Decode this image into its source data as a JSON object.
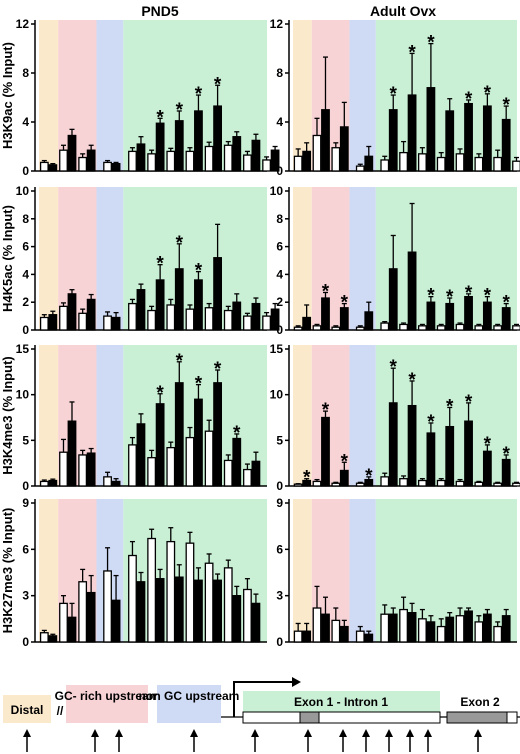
{
  "column_titles": [
    "PND5",
    "Adult Ovx"
  ],
  "region_colors": {
    "distal": "#fbe9cc",
    "gc_rich": "#f8d3d6",
    "non_gc": "#cfdaf4",
    "exon_intron": "#c9efd4"
  },
  "bar_colors": {
    "open": "#ffffff",
    "filled": "#000000"
  },
  "chart_data": [
    {
      "type": "bar",
      "panel": "PND5",
      "ylabel": "H3K9ac (% Input)",
      "ylim": [
        0,
        12
      ],
      "yticks": [
        0,
        4,
        8,
        12
      ],
      "series": [
        {
          "values": [
            0.7,
            1.7,
            1.1,
            0.7,
            1.6,
            1.4,
            1.6,
            1.6,
            2.0,
            2.1,
            1.3,
            0.9
          ],
          "errors": [
            0.15,
            0.4,
            0.3,
            0.15,
            0.3,
            0.3,
            0.25,
            0.3,
            0.35,
            0.3,
            0.3,
            0.25
          ]
        },
        {
          "values": [
            0.5,
            2.9,
            1.7,
            0.6,
            2.2,
            3.9,
            4.1,
            4.9,
            5.3,
            2.8,
            2.5,
            1.7
          ],
          "errors": [
            0.1,
            0.5,
            0.4,
            0.1,
            0.6,
            0.4,
            0.8,
            1.3,
            1.7,
            0.4,
            0.5,
            0.3
          ]
        }
      ],
      "significant": [
        5,
        6,
        7,
        8
      ]
    },
    {
      "type": "bar",
      "panel": "Adult Ovx",
      "ylabel": "",
      "ylim": [
        0,
        12
      ],
      "yticks": [
        0,
        4,
        8,
        12
      ],
      "series": [
        {
          "values": [
            1.2,
            2.9,
            1.9,
            0.4,
            0.9,
            1.5,
            1.4,
            1.1,
            1.4,
            1.1,
            1.1,
            0.8
          ],
          "errors": [
            0.6,
            1.4,
            0.4,
            0.15,
            0.3,
            0.9,
            0.5,
            0.4,
            0.4,
            0.3,
            0.6,
            0.3
          ]
        },
        {
          "values": [
            1.6,
            5.0,
            3.6,
            1.2,
            5.0,
            6.2,
            6.8,
            4.9,
            5.5,
            5.3,
            4.2,
            3.3
          ],
          "errors": [
            0.7,
            4.3,
            2.0,
            0.8,
            1.2,
            3.4,
            3.6,
            1.0,
            0.3,
            1.0,
            1.1,
            0.8
          ]
        }
      ],
      "significant": [
        4,
        5,
        6,
        8,
        9,
        10,
        11
      ]
    },
    {
      "type": "bar",
      "panel": "PND5",
      "ylabel": "H4K5ac (% Input)",
      "ylim": [
        0,
        10
      ],
      "yticks": [
        0,
        2,
        4,
        6,
        8,
        10
      ],
      "series": [
        {
          "values": [
            0.9,
            1.7,
            1.2,
            1.0,
            1.9,
            1.4,
            1.8,
            1.5,
            1.6,
            1.4,
            1.0,
            1.0
          ],
          "errors": [
            0.2,
            0.25,
            0.3,
            0.3,
            0.3,
            0.3,
            0.4,
            0.3,
            0.3,
            0.3,
            0.2,
            0.25
          ]
        },
        {
          "values": [
            1.1,
            2.6,
            2.2,
            0.9,
            2.9,
            3.6,
            4.4,
            3.6,
            5.2,
            2.0,
            1.9,
            1.5
          ],
          "errors": [
            0.25,
            0.3,
            0.35,
            0.35,
            0.4,
            1.1,
            1.8,
            0.6,
            2.4,
            0.6,
            0.4,
            0.4
          ]
        }
      ],
      "significant": [
        5,
        6,
        7
      ]
    },
    {
      "type": "bar",
      "panel": "Adult Ovx",
      "ylabel": "",
      "ylim": [
        0,
        10
      ],
      "yticks": [
        0,
        2,
        4,
        6,
        8,
        10
      ],
      "series": [
        {
          "values": [
            0.2,
            0.3,
            0.2,
            0.2,
            0.5,
            0.4,
            0.3,
            0.3,
            0.4,
            0.3,
            0.3,
            0.3
          ],
          "errors": [
            0.1,
            0.1,
            0.1,
            0.1,
            0.1,
            0.1,
            0.1,
            0.1,
            0.1,
            0.1,
            0.1,
            0.1
          ]
        },
        {
          "values": [
            0.9,
            2.3,
            1.6,
            1.3,
            4.4,
            5.6,
            2.0,
            1.9,
            2.4,
            2.0,
            1.6,
            1.8
          ],
          "errors": [
            0.9,
            0.4,
            0.3,
            0.7,
            2.4,
            3.5,
            0.4,
            0.4,
            0.2,
            0.4,
            0.3,
            0.3
          ]
        }
      ],
      "significant": [
        1,
        2,
        6,
        7,
        8,
        9,
        10,
        11
      ]
    },
    {
      "type": "bar",
      "panel": "PND5",
      "ylabel": "H3K4me3 (% Input)",
      "ylim": [
        0,
        15
      ],
      "yticks": [
        0,
        5,
        10,
        15
      ],
      "series": [
        {
          "values": [
            0.5,
            3.7,
            3.4,
            1.0,
            4.5,
            3.1,
            4.2,
            5.3,
            6.0,
            2.8,
            1.8,
            0
          ],
          "errors": [
            0.15,
            1.4,
            0.5,
            0.5,
            0.8,
            0.8,
            0.6,
            1.1,
            1.2,
            0.6,
            0.6,
            0
          ]
        },
        {
          "values": [
            0.6,
            7.1,
            3.6,
            0.5,
            6.8,
            9.0,
            11.3,
            9.5,
            11.3,
            5.2,
            2.7,
            0
          ],
          "errors": [
            0.15,
            2.1,
            0.5,
            0.3,
            1.1,
            1.1,
            2.3,
            1.6,
            1.4,
            0.5,
            1.0,
            0
          ]
        }
      ],
      "significant": [
        5,
        6,
        7,
        8,
        9
      ]
    },
    {
      "type": "bar",
      "panel": "Adult Ovx",
      "ylabel": "",
      "ylim": [
        0,
        15
      ],
      "yticks": [
        0,
        5,
        10,
        15
      ],
      "series": [
        {
          "values": [
            0.2,
            0.5,
            0.3,
            0.3,
            1.0,
            0.8,
            0.6,
            0.6,
            0.5,
            0.4,
            0.3,
            0.3
          ],
          "errors": [
            0.05,
            0.2,
            0.1,
            0.1,
            0.4,
            0.3,
            0.2,
            0.2,
            0.2,
            0.1,
            0.1,
            0.1
          ]
        },
        {
          "values": [
            0.6,
            7.5,
            1.7,
            0.7,
            9.1,
            8.8,
            5.8,
            6.5,
            7.1,
            3.8,
            2.9,
            0
          ],
          "errors": [
            0.2,
            0.7,
            0.9,
            0.3,
            3.8,
            2.7,
            1.1,
            2.1,
            2.0,
            0.7,
            0.5,
            0
          ]
        }
      ],
      "significant": [
        0,
        1,
        2,
        3,
        4,
        5,
        6,
        7,
        8,
        9,
        10
      ]
    },
    {
      "type": "bar",
      "panel": "PND5",
      "ylabel": "H3K27me3 (% Input)",
      "ylim": [
        0,
        9
      ],
      "yticks": [
        0,
        3,
        6,
        9
      ],
      "series": [
        {
          "values": [
            0.6,
            2.5,
            3.9,
            4.6,
            5.6,
            6.7,
            6.5,
            6.4,
            5.1,
            4.8,
            3.4,
            0
          ],
          "errors": [
            0.15,
            0.5,
            0.8,
            1.5,
            0.9,
            0.6,
            0.9,
            0.7,
            0.6,
            0.5,
            0.7,
            0
          ]
        },
        {
          "values": [
            0.4,
            1.6,
            3.2,
            2.7,
            3.9,
            4.1,
            4.2,
            4.0,
            4.0,
            3.0,
            2.5,
            0
          ],
          "errors": [
            0.1,
            0.9,
            1.1,
            1.6,
            0.6,
            0.6,
            0.8,
            0.8,
            0.4,
            0.6,
            0.6,
            0
          ]
        }
      ],
      "significant": []
    },
    {
      "type": "bar",
      "panel": "Adult Ovx",
      "ylabel": "",
      "ylim": [
        0,
        9
      ],
      "yticks": [
        0,
        3,
        6,
        9
      ],
      "series": [
        {
          "values": [
            0.7,
            2.2,
            1.4,
            0.7,
            1.8,
            2.1,
            1.5,
            1.0,
            1.7,
            1.3,
            1.0,
            0
          ],
          "errors": [
            0.5,
            1.4,
            0.8,
            0.3,
            0.6,
            0.8,
            0.6,
            0.5,
            0.5,
            0.4,
            0.3,
            0
          ]
        },
        {
          "values": [
            0.7,
            1.8,
            1.0,
            0.5,
            1.8,
            1.9,
            1.3,
            1.6,
            2.0,
            1.8,
            1.7,
            0
          ],
          "errors": [
            0.5,
            1.1,
            0.4,
            0.2,
            0.4,
            0.6,
            0.4,
            0.3,
            0.2,
            0.3,
            0.4,
            0
          ]
        }
      ],
      "significant": []
    }
  ],
  "gene_diagram": {
    "labels": {
      "distal": "Distal",
      "gc_rich": "GC- rich upstream",
      "non_gc": "non GC upstream",
      "exon_intron": "Exon 1 - Intron 1",
      "exon2": "Exon 2"
    },
    "gap_symbol": "//",
    "arrow_count": 12
  }
}
